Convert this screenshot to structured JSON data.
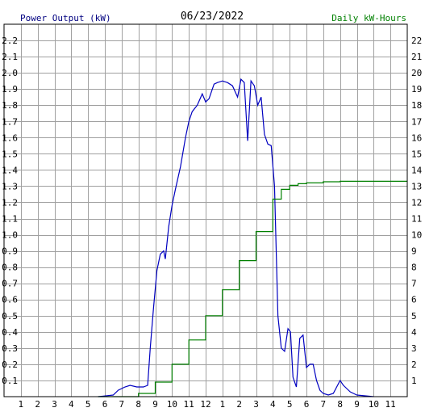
{
  "header": {
    "left_label": "Power Output (kW)",
    "date": "06/23/2022",
    "right_label": "Daily kW-Hours"
  },
  "colors": {
    "power": "#0000c0",
    "energy": "#008000",
    "grid": "#a0a0a0",
    "left_axis_text": "#000080",
    "right_axis_text": "#008000"
  },
  "chart_data": {
    "type": "line",
    "title": "06/23/2022",
    "x_tick_labels": [
      "1",
      "2",
      "3",
      "4",
      "5",
      "6",
      "7",
      "8",
      "9",
      "10",
      "11",
      "12",
      "1",
      "2",
      "3",
      "4",
      "5",
      "6",
      "7",
      "8",
      "9",
      "10",
      "11"
    ],
    "x_tick_hours": [
      1,
      2,
      3,
      4,
      5,
      6,
      7,
      8,
      9,
      10,
      11,
      12,
      13,
      14,
      15,
      16,
      17,
      18,
      19,
      20,
      21,
      22,
      23
    ],
    "xlim_hours": [
      0,
      24
    ],
    "y_left": {
      "label": "Power Output (kW)",
      "ylim": [
        0,
        2.3
      ],
      "ticks": [
        "0.1",
        "0.2",
        "0.3",
        "0.4",
        "0.5",
        "0.6",
        "0.7",
        "0.8",
        "0.9",
        "1.0",
        "1.1",
        "1.2",
        "1.3",
        "1.4",
        "1.5",
        "1.6",
        "1.7",
        "1.8",
        "1.9",
        "2.0",
        "2.1",
        "2.2"
      ],
      "tick_values": [
        0.1,
        0.2,
        0.3,
        0.4,
        0.5,
        0.6,
        0.7,
        0.8,
        0.9,
        1.0,
        1.1,
        1.2,
        1.3,
        1.4,
        1.5,
        1.6,
        1.7,
        1.8,
        1.9,
        2.0,
        2.1,
        2.2
      ]
    },
    "y_right": {
      "label": "Daily kW-Hours",
      "ylim": [
        0,
        23
      ],
      "ticks": [
        "1",
        "2",
        "3",
        "4",
        "5",
        "6",
        "7",
        "8",
        "9",
        "10",
        "11",
        "12",
        "13",
        "14",
        "15",
        "16",
        "17",
        "18",
        "19",
        "20",
        "21",
        "22"
      ],
      "tick_values": [
        1,
        2,
        3,
        4,
        5,
        6,
        7,
        8,
        9,
        10,
        11,
        12,
        13,
        14,
        15,
        16,
        17,
        18,
        19,
        20,
        21,
        22
      ]
    },
    "grid": true,
    "series": [
      {
        "axis": "left",
        "color": "#0000c0",
        "x": [
          5.6,
          6.5,
          6.8,
          7.0,
          7.2,
          7.5,
          7.9,
          8.3,
          8.55,
          8.7,
          8.9,
          9.1,
          9.3,
          9.5,
          9.6,
          9.8,
          10.0,
          10.2,
          10.5,
          10.8,
          11.0,
          11.2,
          11.5,
          11.8,
          12.0,
          12.2,
          12.5,
          12.7,
          13.0,
          13.3,
          13.6,
          13.9,
          14.1,
          14.3,
          14.5,
          14.7,
          14.9,
          15.1,
          15.3,
          15.5,
          15.7,
          15.9,
          16.1,
          16.3,
          16.5,
          16.7,
          16.9,
          17.05,
          17.2,
          17.4,
          17.6,
          17.8,
          18.0,
          18.2,
          18.4,
          18.6,
          18.8,
          19.0,
          19.3,
          19.6,
          20.0,
          20.2,
          20.4,
          20.6,
          20.8,
          21.0,
          22.0
        ],
        "y": [
          0.0,
          0.01,
          0.04,
          0.05,
          0.06,
          0.07,
          0.06,
          0.06,
          0.07,
          0.3,
          0.55,
          0.78,
          0.88,
          0.9,
          0.85,
          1.05,
          1.18,
          1.28,
          1.42,
          1.6,
          1.7,
          1.76,
          1.8,
          1.87,
          1.82,
          1.84,
          1.93,
          1.94,
          1.95,
          1.94,
          1.92,
          1.85,
          1.96,
          1.94,
          1.58,
          1.95,
          1.92,
          1.8,
          1.85,
          1.62,
          1.56,
          1.55,
          1.3,
          0.5,
          0.3,
          0.28,
          0.42,
          0.4,
          0.12,
          0.06,
          0.36,
          0.38,
          0.18,
          0.2,
          0.2,
          0.1,
          0.04,
          0.02,
          0.01,
          0.02,
          0.1,
          0.07,
          0.05,
          0.03,
          0.02,
          0.01,
          0.0
        ]
      },
      {
        "axis": "right",
        "color": "#008000",
        "x": [
          5.6,
          8.0,
          9.0,
          10.0,
          11.0,
          12.0,
          13.0,
          14.0,
          15.0,
          16.0,
          16.5,
          17.0,
          17.5,
          18.0,
          19.0,
          20.0,
          22.0,
          24.0
        ],
        "y": [
          0.0,
          0.2,
          0.9,
          2.0,
          3.5,
          5.0,
          6.6,
          8.4,
          10.2,
          12.2,
          12.8,
          13.05,
          13.15,
          13.2,
          13.27,
          13.3,
          13.3,
          13.3
        ]
      }
    ]
  }
}
